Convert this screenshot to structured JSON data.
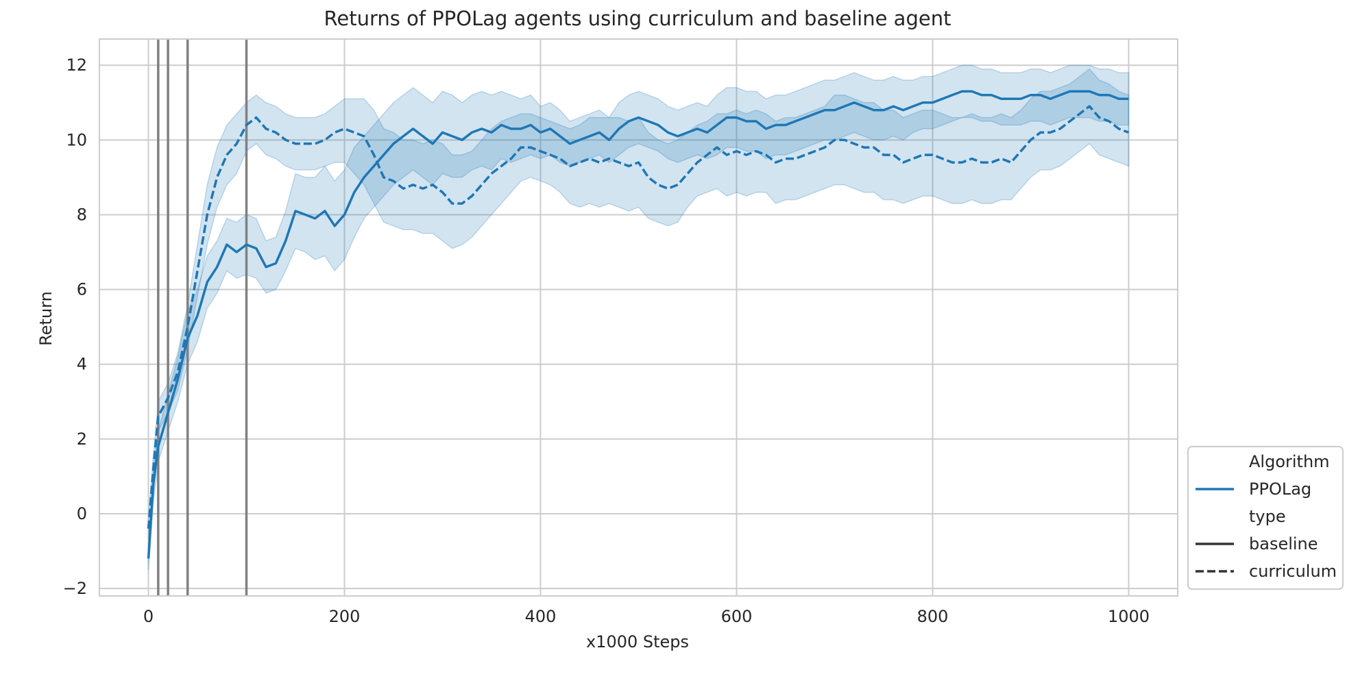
{
  "colors": {
    "series": "#1f77b4",
    "band": "#1f77b4",
    "grid": "#cccccc",
    "frame": "#cccccc",
    "vline": "#808080",
    "text": "#262626",
    "legend_dark": "#333333"
  },
  "chart_data": {
    "type": "line",
    "title": "Returns of PPOLag agents using curriculum and baseline agent",
    "xlabel": "x1000 Steps",
    "ylabel": "Return",
    "xlim": [
      -50,
      1050
    ],
    "ylim": [
      -2.2,
      12.7
    ],
    "xticks": [
      0,
      200,
      400,
      600,
      800,
      1000
    ],
    "yticks": [
      -2,
      0,
      2,
      4,
      6,
      8,
      10,
      12
    ],
    "xtick_labels": [
      "0",
      "200",
      "400",
      "600",
      "800",
      "1000"
    ],
    "ytick_labels": [
      "−2",
      "0",
      "2",
      "4",
      "6",
      "8",
      "10",
      "12"
    ],
    "grid": true,
    "vertical_lines_x": [
      10,
      20,
      40,
      100
    ],
    "legend": {
      "placement": "outside-right-bottom",
      "entries": [
        {
          "label": "Algorithm",
          "kind": "header"
        },
        {
          "label": "PPOLag",
          "kind": "line",
          "style": "solid",
          "color": "#1f77b4"
        },
        {
          "label": "type",
          "kind": "header"
        },
        {
          "label": "baseline",
          "kind": "line",
          "style": "solid",
          "color": "#333333"
        },
        {
          "label": "curriculum",
          "kind": "line",
          "style": "dashed",
          "color": "#333333"
        }
      ]
    },
    "series": [
      {
        "name": "baseline",
        "algorithm": "PPOLag",
        "style": "solid",
        "x": [
          0,
          5,
          10,
          20,
          30,
          40,
          50,
          60,
          70,
          80,
          90,
          100,
          110,
          120,
          130,
          140,
          150,
          160,
          170,
          180,
          190,
          200,
          210,
          220,
          230,
          240,
          250,
          260,
          270,
          280,
          290,
          300,
          310,
          320,
          330,
          340,
          350,
          360,
          370,
          380,
          390,
          400,
          410,
          420,
          430,
          440,
          450,
          460,
          470,
          480,
          490,
          500,
          510,
          520,
          530,
          540,
          550,
          560,
          570,
          580,
          590,
          600,
          610,
          620,
          630,
          640,
          650,
          660,
          670,
          680,
          690,
          700,
          710,
          720,
          730,
          740,
          750,
          760,
          770,
          780,
          790,
          800,
          810,
          820,
          830,
          840,
          850,
          860,
          870,
          880,
          890,
          900,
          910,
          920,
          930,
          940,
          950,
          960,
          970,
          980,
          990,
          1000
        ],
        "y": [
          -1.2,
          0.8,
          1.8,
          2.7,
          3.6,
          4.7,
          5.3,
          6.2,
          6.6,
          7.2,
          7.0,
          7.2,
          7.1,
          6.6,
          6.7,
          7.3,
          8.1,
          8.0,
          7.9,
          8.1,
          7.7,
          8.0,
          8.6,
          9.0,
          9.3,
          9.6,
          9.9,
          10.1,
          10.3,
          10.1,
          9.9,
          10.2,
          10.1,
          10.0,
          10.2,
          10.3,
          10.2,
          10.4,
          10.3,
          10.3,
          10.4,
          10.2,
          10.3,
          10.1,
          9.9,
          10.0,
          10.1,
          10.2,
          10.0,
          10.3,
          10.5,
          10.6,
          10.5,
          10.4,
          10.2,
          10.1,
          10.2,
          10.3,
          10.2,
          10.4,
          10.6,
          10.6,
          10.5,
          10.5,
          10.3,
          10.4,
          10.4,
          10.5,
          10.6,
          10.7,
          10.8,
          10.8,
          10.9,
          11.0,
          10.9,
          10.8,
          10.8,
          10.9,
          10.8,
          10.9,
          11.0,
          11.0,
          11.1,
          11.2,
          11.3,
          11.3,
          11.2,
          11.2,
          11.1,
          11.1,
          11.1,
          11.2,
          11.2,
          11.1,
          11.2,
          11.3,
          11.3,
          11.3,
          11.2,
          11.2,
          11.1,
          11.1
        ],
        "ci_lower": [
          -1.5,
          0.3,
          1.4,
          2.2,
          3.0,
          4.0,
          4.6,
          5.5,
          5.9,
          6.5,
          6.3,
          6.4,
          6.3,
          5.9,
          6.0,
          6.5,
          7.1,
          7.0,
          6.8,
          6.9,
          6.5,
          6.8,
          7.4,
          7.9,
          8.2,
          8.5,
          8.8,
          9.0,
          9.2,
          9.0,
          8.8,
          9.1,
          9.0,
          9.0,
          9.2,
          9.3,
          9.2,
          9.5,
          9.4,
          9.5,
          9.6,
          9.5,
          9.6,
          9.4,
          9.3,
          9.4,
          9.5,
          9.6,
          9.4,
          9.6,
          9.8,
          9.9,
          9.8,
          9.7,
          9.5,
          9.4,
          9.5,
          9.6,
          9.5,
          9.6,
          9.8,
          9.8,
          9.7,
          9.7,
          9.5,
          9.6,
          9.6,
          9.7,
          9.8,
          9.9,
          10.0,
          10.0,
          10.1,
          10.2,
          10.1,
          10.0,
          10.0,
          10.1,
          10.0,
          10.2,
          10.3,
          10.3,
          10.4,
          10.5,
          10.6,
          10.6,
          10.5,
          10.5,
          10.4,
          10.4,
          10.4,
          10.5,
          10.5,
          10.4,
          10.5,
          10.6,
          10.6,
          10.6,
          10.5,
          10.5,
          10.4,
          10.4
        ],
        "ci_upper": [
          -0.9,
          1.3,
          2.2,
          3.2,
          4.2,
          5.4,
          6.0,
          6.9,
          7.3,
          7.9,
          7.8,
          8.0,
          7.9,
          7.3,
          7.4,
          8.1,
          9.1,
          9.0,
          9.0,
          9.3,
          8.9,
          9.2,
          9.8,
          10.1,
          10.4,
          10.7,
          11.0,
          11.2,
          11.4,
          11.2,
          11.0,
          11.3,
          11.2,
          11.0,
          11.2,
          11.3,
          11.2,
          11.3,
          11.2,
          11.1,
          11.2,
          10.9,
          11.0,
          10.8,
          10.5,
          10.6,
          10.7,
          10.8,
          10.6,
          11.0,
          11.2,
          11.3,
          11.2,
          11.1,
          10.9,
          10.8,
          10.9,
          11.0,
          10.9,
          11.2,
          11.4,
          11.4,
          11.3,
          11.3,
          11.1,
          11.2,
          11.2,
          11.3,
          11.4,
          11.5,
          11.6,
          11.6,
          11.7,
          11.8,
          11.7,
          11.6,
          11.6,
          11.7,
          11.6,
          11.6,
          11.7,
          11.7,
          11.8,
          11.9,
          12.0,
          12.0,
          11.9,
          11.9,
          11.8,
          11.8,
          11.8,
          11.9,
          11.9,
          11.8,
          11.9,
          12.0,
          12.0,
          12.0,
          11.9,
          11.9,
          11.8,
          11.8
        ]
      },
      {
        "name": "curriculum",
        "algorithm": "PPOLag",
        "style": "dashed",
        "x": [
          0,
          5,
          10,
          20,
          30,
          40,
          50,
          60,
          70,
          80,
          90,
          100,
          110,
          120,
          130,
          140,
          150,
          160,
          170,
          180,
          190,
          200,
          210,
          220,
          230,
          240,
          250,
          260,
          270,
          280,
          290,
          300,
          310,
          320,
          330,
          340,
          350,
          360,
          370,
          380,
          390,
          400,
          410,
          420,
          430,
          440,
          450,
          460,
          470,
          480,
          490,
          500,
          510,
          520,
          530,
          540,
          550,
          560,
          570,
          580,
          590,
          600,
          610,
          620,
          630,
          640,
          650,
          660,
          670,
          680,
          690,
          700,
          710,
          720,
          730,
          740,
          750,
          760,
          770,
          780,
          790,
          800,
          810,
          820,
          830,
          840,
          850,
          860,
          870,
          880,
          890,
          900,
          910,
          920,
          930,
          940,
          950,
          960,
          970,
          980,
          990,
          1000
        ],
        "y": [
          -0.4,
          1.2,
          2.6,
          3.1,
          3.8,
          5.0,
          6.5,
          8.0,
          9.0,
          9.6,
          9.9,
          10.4,
          10.6,
          10.3,
          10.2,
          10.0,
          9.9,
          9.9,
          9.9,
          10.0,
          10.2,
          10.3,
          10.2,
          10.1,
          9.6,
          9.0,
          8.9,
          8.7,
          8.8,
          8.7,
          8.8,
          8.6,
          8.3,
          8.3,
          8.5,
          8.8,
          9.1,
          9.3,
          9.5,
          9.8,
          9.8,
          9.7,
          9.6,
          9.5,
          9.3,
          9.4,
          9.5,
          9.4,
          9.5,
          9.4,
          9.3,
          9.4,
          9.0,
          8.8,
          8.7,
          8.8,
          9.1,
          9.4,
          9.6,
          9.8,
          9.6,
          9.7,
          9.6,
          9.7,
          9.6,
          9.4,
          9.5,
          9.5,
          9.6,
          9.7,
          9.8,
          10.0,
          10.0,
          9.9,
          9.8,
          9.8,
          9.6,
          9.6,
          9.4,
          9.5,
          9.6,
          9.6,
          9.5,
          9.4,
          9.4,
          9.5,
          9.4,
          9.4,
          9.5,
          9.4,
          9.7,
          10.0,
          10.2,
          10.2,
          10.3,
          10.5,
          10.7,
          10.9,
          10.6,
          10.5,
          10.3,
          10.2
        ],
        "ci_lower": [
          -0.7,
          0.8,
          2.2,
          2.7,
          3.3,
          4.4,
          5.8,
          7.2,
          8.2,
          8.8,
          9.1,
          9.7,
          9.9,
          9.6,
          9.5,
          9.3,
          9.2,
          9.2,
          9.2,
          9.3,
          9.4,
          9.4,
          9.1,
          8.8,
          8.3,
          7.8,
          7.7,
          7.6,
          7.6,
          7.5,
          7.5,
          7.3,
          7.1,
          7.2,
          7.4,
          7.7,
          8.0,
          8.3,
          8.6,
          8.9,
          9.0,
          8.9,
          8.8,
          8.6,
          8.3,
          8.2,
          8.3,
          8.2,
          8.3,
          8.2,
          8.1,
          8.2,
          7.9,
          7.8,
          7.7,
          7.8,
          8.2,
          8.5,
          8.6,
          8.7,
          8.5,
          8.6,
          8.5,
          8.6,
          8.6,
          8.3,
          8.4,
          8.4,
          8.5,
          8.6,
          8.7,
          8.8,
          8.8,
          8.7,
          8.6,
          8.6,
          8.4,
          8.4,
          8.3,
          8.4,
          8.5,
          8.5,
          8.4,
          8.3,
          8.3,
          8.4,
          8.3,
          8.3,
          8.4,
          8.4,
          8.7,
          9.0,
          9.2,
          9.2,
          9.3,
          9.5,
          9.7,
          9.9,
          9.6,
          9.5,
          9.4,
          9.3
        ],
        "ci_upper": [
          -0.1,
          1.6,
          3.0,
          3.5,
          4.3,
          5.6,
          7.2,
          8.8,
          9.8,
          10.4,
          10.7,
          11.0,
          11.2,
          11.0,
          10.9,
          10.7,
          10.6,
          10.6,
          10.6,
          10.7,
          10.9,
          11.1,
          11.1,
          11.1,
          10.8,
          10.3,
          10.2,
          10.0,
          10.0,
          9.9,
          10.0,
          9.9,
          9.6,
          9.6,
          9.7,
          10.0,
          10.3,
          10.5,
          10.6,
          10.7,
          10.7,
          10.6,
          10.5,
          10.4,
          10.3,
          10.4,
          10.6,
          10.6,
          10.6,
          10.6,
          10.5,
          10.6,
          10.2,
          10.0,
          9.9,
          10.0,
          10.2,
          10.4,
          10.5,
          10.7,
          10.7,
          10.8,
          10.7,
          10.8,
          10.7,
          10.5,
          10.6,
          10.6,
          10.7,
          10.8,
          10.9,
          11.2,
          11.2,
          11.1,
          11.0,
          11.0,
          10.8,
          10.8,
          10.6,
          10.7,
          10.8,
          10.8,
          10.7,
          10.6,
          10.6,
          10.7,
          10.6,
          10.6,
          10.7,
          10.6,
          10.8,
          11.1,
          11.3,
          11.3,
          11.4,
          11.5,
          11.7,
          11.9,
          11.6,
          11.5,
          11.3,
          11.2
        ]
      }
    ]
  }
}
